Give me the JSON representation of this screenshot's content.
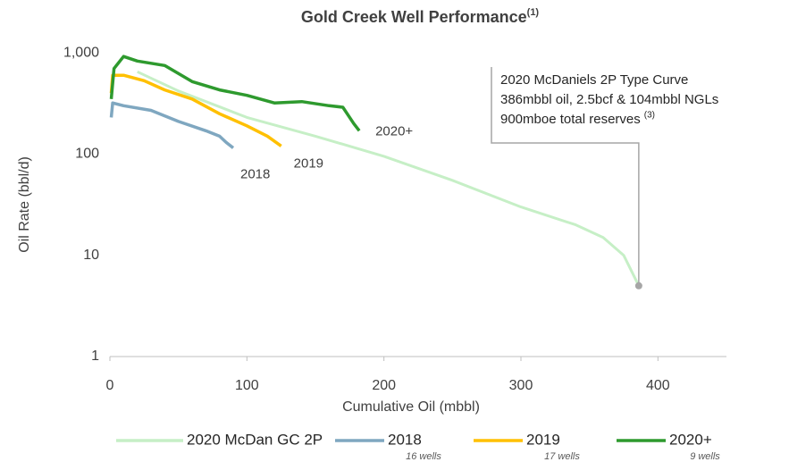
{
  "chart_data": {
    "type": "line",
    "title": "Gold Creek Well Performance",
    "title_note": "(1)",
    "xlabel": "Cumulative Oil (mbbl)",
    "ylabel": "Oil Rate (bbl/d)",
    "annotation": {
      "lines": [
        "2020 McDaniels 2P Type Curve",
        "386mbbl oil, 2.5bcf & 104mbbl NGLs",
        "900mboe total reserves"
      ],
      "note": "(3)"
    },
    "xlim": [
      0,
      450
    ],
    "xticks": [
      0,
      100,
      200,
      300,
      400
    ],
    "ylim": [
      1,
      2000
    ],
    "yticks": [
      1,
      10,
      100,
      {
        "value": 1000,
        "label": "1,000"
      }
    ],
    "log_y": true,
    "grid": false,
    "legend": "bottom",
    "series": [
      {
        "name": "2020 McDan GC 2P",
        "color": "#c6efc6",
        "x": [
          20,
          50,
          100,
          150,
          200,
          250,
          300,
          340,
          360,
          375,
          386
        ],
        "values": [
          650,
          420,
          230,
          150,
          95,
          55,
          30,
          20,
          15,
          10,
          5
        ]
      },
      {
        "name": "2018",
        "color": "#7fa7c0",
        "wells": "16 wells",
        "x": [
          1,
          2,
          10,
          30,
          50,
          70,
          80,
          85,
          90
        ],
        "values": [
          230,
          320,
          300,
          270,
          210,
          170,
          150,
          130,
          115
        ]
      },
      {
        "name": "2019",
        "color": "#ffc000",
        "wells": "17 wells",
        "x": [
          1,
          2,
          10,
          25,
          40,
          60,
          80,
          100,
          115,
          125
        ],
        "values": [
          400,
          600,
          600,
          530,
          430,
          350,
          250,
          190,
          150,
          120
        ]
      },
      {
        "name": "2020+",
        "color": "#2e9a2e",
        "wells": "9 wells",
        "x": [
          1,
          3,
          10,
          20,
          40,
          60,
          80,
          100,
          120,
          140,
          160,
          170,
          178,
          182
        ],
        "values": [
          350,
          700,
          920,
          830,
          750,
          520,
          430,
          380,
          320,
          330,
          300,
          290,
          200,
          170
        ]
      }
    ]
  }
}
